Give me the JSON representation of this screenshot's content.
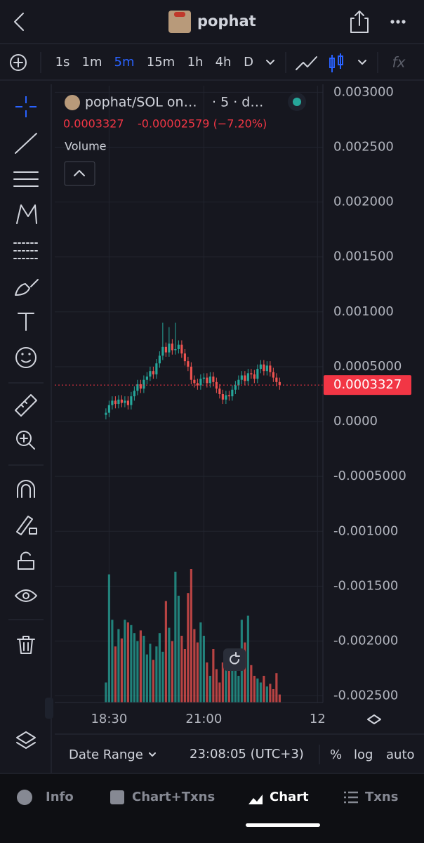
{
  "top_bar": {
    "title": "pophat"
  },
  "toolbar": {
    "intervals": [
      "1s",
      "1m",
      "5m",
      "15m",
      "1h",
      "4h",
      "D"
    ],
    "active_interval": 2
  },
  "chart_header": {
    "symbol": "pophat/SOL on…",
    "suffix": "· 5 · d…",
    "last": "0.0003327",
    "change": "-0.00002579 (−7.20%)",
    "volume_label": "Volume"
  },
  "chart_data": {
    "type": "candlestick",
    "open": [
      6e-05,
      8e-05,
      0.00015,
      0.00019,
      0.00016,
      0.0002,
      0.00017,
      0.00019,
      0.00015,
      0.00023,
      0.00028,
      0.00034,
      0.0003,
      0.00038,
      0.00041,
      0.00046,
      0.00043,
      0.00053,
      0.0006,
      0.00068,
      0.00063,
      0.00071,
      0.00065,
      0.00066,
      0.0007,
      0.00062,
      0.00055,
      0.0005,
      0.00038,
      0.00035,
      0.00033,
      0.00039,
      0.0004,
      0.00035,
      0.00041,
      0.00036,
      0.0003,
      0.00025,
      0.0002,
      0.00024,
      0.00023,
      0.00029,
      0.00033,
      0.00038,
      0.00042,
      0.00037,
      0.00044,
      0.00043,
      0.00039,
      0.00048,
      0.00052,
      0.00046,
      0.00051,
      0.00045,
      0.0004,
      0.00036
    ],
    "high": [
      0.00012,
      0.00019,
      0.00023,
      0.00023,
      0.00024,
      0.00024,
      0.00023,
      0.00023,
      0.00027,
      0.00032,
      0.00038,
      0.00038,
      0.00042,
      0.00045,
      0.0005,
      0.0005,
      0.00057,
      0.00064,
      0.0009,
      0.00072,
      0.00086,
      0.00075,
      0.0009,
      0.00074,
      0.00074,
      0.00066,
      0.00059,
      0.00054,
      0.00042,
      0.00039,
      0.00043,
      0.00044,
      0.00044,
      0.00045,
      0.00045,
      0.0004,
      0.00034,
      0.00029,
      0.00028,
      0.00028,
      0.00033,
      0.00037,
      0.00042,
      0.00046,
      0.00046,
      0.00048,
      0.00048,
      0.00047,
      0.00052,
      0.00056,
      0.00056,
      0.00055,
      0.00055,
      0.00049,
      0.00044,
      0.0004
    ],
    "low": [
      2e-05,
      4e-05,
      0.00011,
      0.00012,
      0.00012,
      0.00013,
      0.00013,
      0.00011,
      0.00011,
      0.00019,
      0.00024,
      0.00026,
      0.00026,
      0.00034,
      0.00037,
      0.00039,
      0.00039,
      0.00049,
      0.00056,
      0.00059,
      0.00059,
      0.00061,
      0.00061,
      0.00062,
      0.00058,
      0.00051,
      0.00046,
      0.00034,
      0.00031,
      0.00029,
      0.00029,
      0.00035,
      0.00031,
      0.00031,
      0.00032,
      0.00026,
      0.00021,
      0.00016,
      0.00016,
      0.00019,
      0.00019,
      0.00025,
      0.00029,
      0.00034,
      0.00033,
      0.00033,
      0.00039,
      0.00035,
      0.00035,
      0.00044,
      0.00042,
      0.00042,
      0.00041,
      0.00036,
      0.00032,
      0.00029
    ],
    "close": [
      8e-05,
      0.00015,
      0.00019,
      0.00016,
      0.0002,
      0.00017,
      0.00019,
      0.00015,
      0.00023,
      0.00028,
      0.00034,
      0.0003,
      0.00038,
      0.00041,
      0.00046,
      0.00043,
      0.00053,
      0.0006,
      0.00068,
      0.00063,
      0.00071,
      0.00065,
      0.00066,
      0.0007,
      0.00062,
      0.00055,
      0.0005,
      0.00038,
      0.00035,
      0.00033,
      0.00039,
      0.0004,
      0.00035,
      0.00041,
      0.00036,
      0.0003,
      0.00025,
      0.0002,
      0.00024,
      0.00023,
      0.00029,
      0.00033,
      0.00038,
      0.00042,
      0.00037,
      0.00044,
      0.00043,
      0.00039,
      0.00048,
      0.00052,
      0.00046,
      0.00051,
      0.00045,
      0.0004,
      0.00036,
      0.0003327
    ],
    "volume": [
      15,
      96,
      62,
      42,
      55,
      48,
      62,
      60,
      58,
      52,
      46,
      54,
      50,
      36,
      44,
      32,
      42,
      52,
      38,
      76,
      56,
      46,
      98,
      80,
      50,
      40,
      82,
      100,
      55,
      45,
      60,
      50,
      30,
      20,
      40,
      25,
      15,
      30,
      35,
      25,
      38,
      30,
      20,
      62,
      45,
      65,
      28,
      20,
      18,
      15,
      20,
      12,
      14,
      10,
      22,
      6
    ],
    "up_color": "#26a69a",
    "down_color": "#ef5350",
    "last_price": 0.0003327,
    "ylim": [
      -0.00256,
      0.00306
    ],
    "yticks": [
      {
        "value": 0.003,
        "label": "0.003000"
      },
      {
        "value": 0.0025,
        "label": "0.002500"
      },
      {
        "value": 0.002,
        "label": "0.002000"
      },
      {
        "value": 0.0015,
        "label": "0.001500"
      },
      {
        "value": 0.001,
        "label": "0.001000"
      },
      {
        "value": 0.0005,
        "label": "0.0005000"
      },
      {
        "value": 0,
        "label": "0.0000"
      },
      {
        "value": -0.0005,
        "label": "-0.0005000"
      },
      {
        "value": -0.001,
        "label": "-0.001000"
      },
      {
        "value": -0.0015,
        "label": "-0.001500"
      },
      {
        "value": -0.002,
        "label": "-0.002000"
      },
      {
        "value": -0.0025,
        "label": "-0.002500"
      }
    ],
    "xlim": [
      -16.2,
      68.7
    ],
    "xticks": [
      {
        "value": 1,
        "label": "18:30"
      },
      {
        "value": 31,
        "label": "21:00"
      },
      {
        "value": 67,
        "label": "12"
      }
    ],
    "grid": true
  },
  "footer": {
    "date_range": "Date Range",
    "time": "23:08:05 (UTC+3)",
    "percent": "%",
    "log": "log",
    "auto": "auto"
  },
  "tabs": [
    "Info",
    "Chart+Txns",
    "Chart",
    "Txns"
  ],
  "active_tab": 2
}
